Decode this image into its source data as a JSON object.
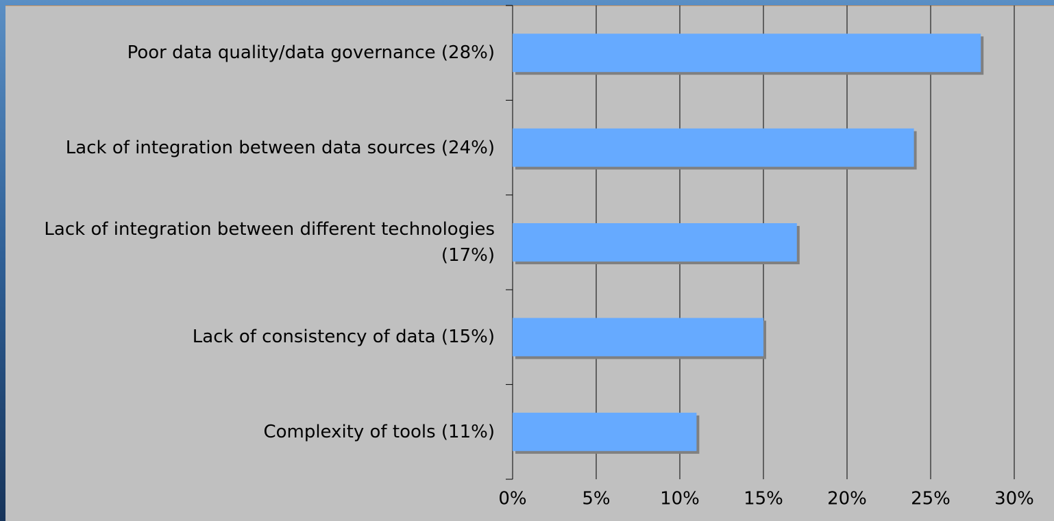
{
  "chart_data": {
    "type": "bar",
    "orientation": "horizontal",
    "categories": [
      "Poor data quality/data governance (28%)",
      "Lack of integration between data sources (24%)",
      "Lack of integration between different technologies (17%)",
      "Lack of consistency of data (15%)",
      "Complexity of tools (11%)"
    ],
    "values": [
      28,
      24,
      17,
      15,
      11
    ],
    "color": "#66aaff",
    "xlim": [
      0,
      30
    ],
    "xticks": [
      {
        "value": 0,
        "label": "0%"
      },
      {
        "value": 5,
        "label": "5%"
      },
      {
        "value": 10,
        "label": "10%"
      },
      {
        "value": 15,
        "label": "15%"
      },
      {
        "value": 20,
        "label": "20%"
      },
      {
        "value": 25,
        "label": "25%"
      },
      {
        "value": 30,
        "label": "30%"
      }
    ],
    "grid": true
  }
}
